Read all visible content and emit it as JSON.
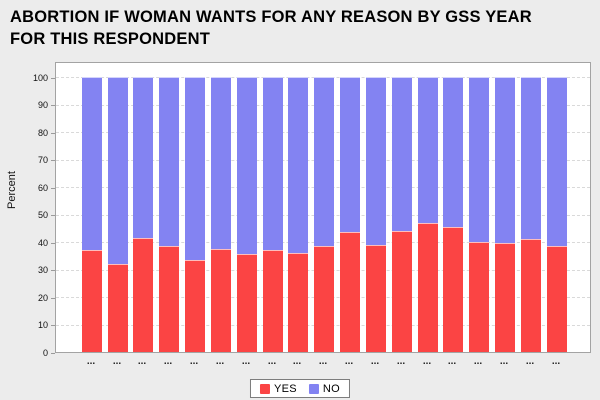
{
  "title": {
    "line1": "ABORTION IF WOMAN WANTS FOR ANY REASON BY GSS YEAR",
    "line2": "FOR THIS RESPONDENT"
  },
  "chart_data": {
    "type": "bar",
    "stacked": true,
    "title": "ABORTION IF WOMAN WANTS FOR ANY REASON BY GSS YEAR FOR THIS RESPONDENT",
    "xlabel": "",
    "ylabel": "Percent",
    "ylim": [
      0,
      100
    ],
    "yticks": [
      0,
      10,
      20,
      30,
      40,
      50,
      60,
      70,
      80,
      90,
      100
    ],
    "grid": "horizontal-dashed",
    "legend_position": "bottom-center",
    "categories": [
      "...",
      "...",
      "...",
      "...",
      "...",
      "...",
      "...",
      "...",
      "...",
      "...",
      "...",
      "...",
      "...",
      "...",
      "...",
      "...",
      "...",
      "...",
      "..."
    ],
    "series": [
      {
        "name": "YES",
        "color": "#fb4444",
        "values": [
          37,
          32,
          41.5,
          38.5,
          33.5,
          37.5,
          35.5,
          37,
          36,
          38.5,
          43.5,
          39,
          44,
          47,
          45.5,
          40,
          39.5,
          41,
          38.5
        ]
      },
      {
        "name": "NO",
        "color": "#8383f2",
        "values": [
          63,
          68,
          58.5,
          61.5,
          66.5,
          62.5,
          64.5,
          63,
          64,
          61.5,
          56.5,
          61,
          56,
          53,
          54.5,
          60,
          60.5,
          59,
          61.5
        ]
      }
    ]
  },
  "colors": {
    "background": "#ececec",
    "plot_background": "#ffffff",
    "plot_border": "#a3a3a3",
    "gridline": "#d9d9d9",
    "yes": "#fb4444",
    "no": "#8383f2"
  }
}
